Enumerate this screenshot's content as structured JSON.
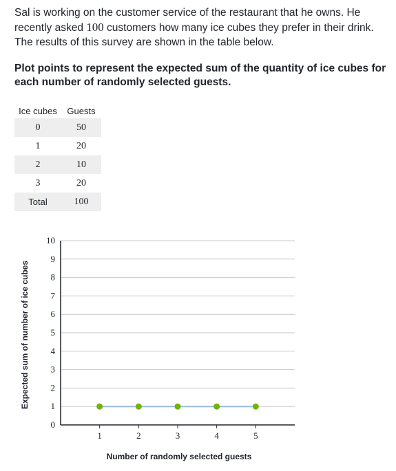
{
  "intro": {
    "text_before": "Sal is working on the customer service of the restaurant that he owns. He recently asked ",
    "number": "100",
    "text_after": " customers how many ice cubes they prefer in their drink. The results of this survey are shown in the table below."
  },
  "question": "Plot points to represent the expected sum of the quantity of ice cubes for each number of randomly selected guests.",
  "table": {
    "headers": [
      "Ice cubes",
      "Guests"
    ],
    "rows": [
      [
        "0",
        "50"
      ],
      [
        "1",
        "20"
      ],
      [
        "2",
        "10"
      ],
      [
        "3",
        "20"
      ],
      [
        "Total",
        "100"
      ]
    ]
  },
  "colors": {
    "point": "#71b307",
    "segment": "#9ab8e6",
    "grid": "#c8c8c8",
    "axis": "#21242c"
  },
  "chart_data": {
    "type": "scatter",
    "title": "",
    "xlabel": "Number of randomly selected guests",
    "ylabel": "Expected sum of number of ice cubes",
    "x": [
      1,
      2,
      3,
      4,
      5
    ],
    "y": [
      1,
      1,
      1,
      1,
      1
    ],
    "xlim": [
      0,
      6
    ],
    "ylim": [
      0,
      10
    ],
    "x_ticks": [
      1,
      2,
      3,
      4,
      5
    ],
    "y_ticks": [
      0,
      1,
      2,
      3,
      4,
      5,
      6,
      7,
      8,
      9,
      10
    ],
    "grid": true,
    "connected": true
  }
}
